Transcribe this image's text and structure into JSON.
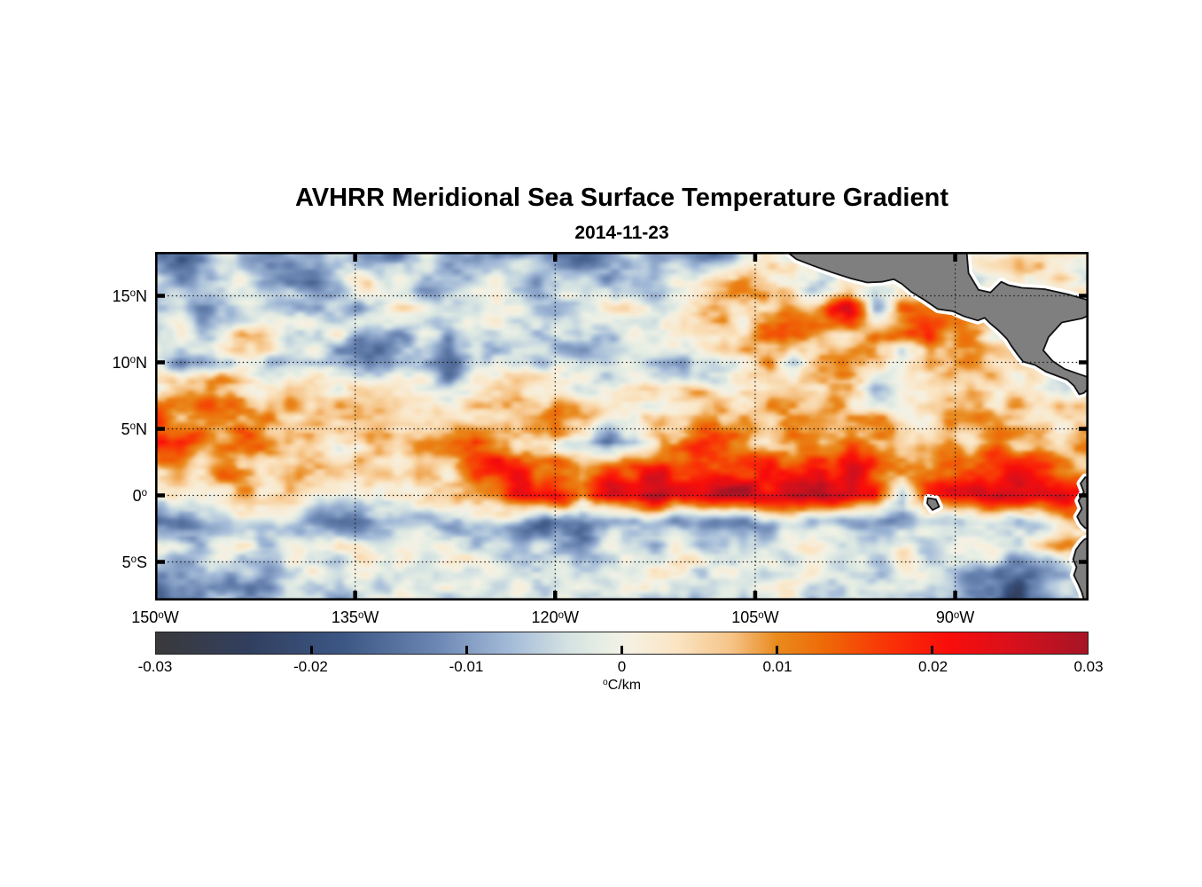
{
  "chart_data": {
    "type": "heatmap",
    "title": "AVHRR Meridional Sea Surface Temperature Gradient",
    "subtitle": "2014-11-23",
    "lon_range": [
      -150,
      -80
    ],
    "lat_range": [
      -7.9,
      18.3
    ],
    "x_ticks": [
      {
        "num": "150",
        "hemi": "W",
        "lon": -150
      },
      {
        "num": "135",
        "hemi": "W",
        "lon": -135
      },
      {
        "num": "120",
        "hemi": "W",
        "lon": -120
      },
      {
        "num": "105",
        "hemi": "W",
        "lon": -105
      },
      {
        "num": "90",
        "hemi": "W",
        "lon": -90
      }
    ],
    "y_ticks": [
      {
        "num": "15",
        "hemi": "N",
        "lat": 15
      },
      {
        "num": "10",
        "hemi": "N",
        "lat": 10
      },
      {
        "num": "5",
        "hemi": "N",
        "lat": 5
      },
      {
        "num": "0",
        "hemi": "",
        "lat": 0
      },
      {
        "num": "5",
        "hemi": "S",
        "lat": -5
      }
    ],
    "gridlines": {
      "lons": [
        -135,
        -120,
        -105,
        -90
      ],
      "lats": [
        15,
        10,
        5,
        0,
        -5
      ],
      "style": "dotted",
      "color": "#1a1a1a"
    },
    "colorbar": {
      "unit": "°C/km",
      "range": [
        -0.03,
        0.03
      ],
      "tick_labels": [
        "-0.03",
        "-0.02",
        "-0.01",
        "0",
        "0.01",
        "0.02",
        "0.03"
      ],
      "tick_values": [
        -0.03,
        -0.02,
        -0.01,
        0,
        0.01,
        0.02,
        0.03
      ]
    },
    "colormap_stops": [
      {
        "v": -0.03,
        "c": "#3a393b"
      },
      {
        "v": -0.024,
        "c": "#313f5e"
      },
      {
        "v": -0.018,
        "c": "#3c5684"
      },
      {
        "v": -0.012,
        "c": "#6b86b3"
      },
      {
        "v": -0.007,
        "c": "#a6bdd9"
      },
      {
        "v": -0.0035,
        "c": "#d4e2e2"
      },
      {
        "v": -0.001,
        "c": "#e9efe4"
      },
      {
        "v": 0.0,
        "c": "#f2f1e6"
      },
      {
        "v": 0.001,
        "c": "#f7efdd"
      },
      {
        "v": 0.0035,
        "c": "#fae5c4"
      },
      {
        "v": 0.007,
        "c": "#f6c488"
      },
      {
        "v": 0.01,
        "c": "#e98a1d"
      },
      {
        "v": 0.013,
        "c": "#ee6a07"
      },
      {
        "v": 0.017,
        "c": "#f93506"
      },
      {
        "v": 0.021,
        "c": "#f90d0a"
      },
      {
        "v": 0.025,
        "c": "#d9101b"
      },
      {
        "v": 0.03,
        "c": "#a61425"
      }
    ],
    "grid": {
      "lon_start": -150,
      "lon_step": 2,
      "lat_start": 18,
      "lat_step": -2,
      "unit_scale": 0.001,
      "values": [
        [
          -10,
          -14,
          -6,
          -2,
          -10,
          -12,
          -8,
          -2,
          -10,
          -12,
          -4,
          -8,
          -12,
          -10,
          -6,
          -10,
          -16,
          -12,
          -4,
          -8,
          -10,
          -12,
          -8,
          0,
          0,
          0,
          0,
          0,
          0,
          2,
          2,
          4,
          2,
          2,
          4,
          2
        ],
        [
          -4,
          -8,
          -3,
          2,
          -6,
          -10,
          -12,
          -4,
          2,
          -2,
          -8,
          -4,
          -2,
          -4,
          -8,
          -4,
          -2,
          -6,
          -10,
          -4,
          2,
          6,
          10,
          4,
          -4,
          -8,
          4,
          0,
          0,
          2,
          2,
          0,
          2,
          4,
          2,
          2
        ],
        [
          -2,
          -4,
          -8,
          -6,
          0,
          -2,
          -8,
          -10,
          -4,
          0,
          -2,
          -8,
          -6,
          -2,
          0,
          -4,
          -2,
          0,
          2,
          -2,
          0,
          4,
          2,
          8,
          6,
          14,
          24,
          -6,
          10,
          16,
          8,
          6,
          0,
          0,
          0,
          0
        ],
        [
          -2,
          0,
          -4,
          5,
          3,
          -4,
          0,
          -2,
          -8,
          -10,
          -4,
          -8,
          -4,
          0,
          -2,
          -6,
          -8,
          -4,
          0,
          2,
          -2,
          4,
          6,
          12,
          18,
          10,
          4,
          12,
          8,
          14,
          10,
          4,
          0,
          0,
          0,
          0
        ],
        [
          -6,
          -10,
          -4,
          -2,
          -4,
          -8,
          -6,
          -12,
          -16,
          -10,
          -6,
          -12,
          -8,
          -4,
          -2,
          -4,
          -6,
          -2,
          0,
          -4,
          -8,
          -2,
          2,
          6,
          -6,
          8,
          10,
          6,
          -4,
          8,
          12,
          6,
          4,
          0,
          0,
          0
        ],
        [
          2,
          8,
          12,
          10,
          4,
          8,
          4,
          2,
          0,
          2,
          -2,
          -6,
          2,
          6,
          4,
          2,
          0,
          -2,
          2,
          0,
          4,
          2,
          -2,
          4,
          6,
          2,
          6,
          -4,
          2,
          4,
          2,
          6,
          2,
          4,
          0,
          0
        ],
        [
          16,
          10,
          12,
          14,
          8,
          4,
          6,
          10,
          6,
          4,
          2,
          6,
          4,
          2,
          8,
          14,
          8,
          4,
          2,
          4,
          6,
          10,
          4,
          8,
          6,
          6,
          8,
          6,
          4,
          6,
          8,
          10,
          6,
          4,
          8,
          6
        ],
        [
          20,
          16,
          8,
          12,
          14,
          10,
          2,
          6,
          8,
          4,
          6,
          10,
          16,
          8,
          4,
          6,
          -6,
          -14,
          -8,
          8,
          12,
          16,
          10,
          6,
          10,
          10,
          14,
          8,
          6,
          4,
          6,
          8,
          10,
          6,
          4,
          8
        ],
        [
          6,
          4,
          8,
          10,
          6,
          8,
          4,
          2,
          6,
          2,
          4,
          8,
          14,
          20,
          16,
          10,
          6,
          14,
          18,
          22,
          16,
          12,
          16,
          20,
          14,
          18,
          22,
          16,
          12,
          10,
          14,
          18,
          22,
          16,
          12,
          10
        ],
        [
          4,
          2,
          4,
          6,
          2,
          4,
          2,
          0,
          2,
          4,
          2,
          6,
          10,
          14,
          24,
          28,
          8,
          26,
          26,
          28,
          24,
          26,
          28,
          24,
          26,
          28,
          24,
          20,
          -8,
          18,
          24,
          28,
          26,
          28,
          24,
          20
        ],
        [
          -14,
          -18,
          -8,
          -4,
          -8,
          -6,
          -10,
          -14,
          -12,
          -8,
          -6,
          -10,
          -8,
          -6,
          -12,
          -16,
          -18,
          -10,
          -6,
          -10,
          -12,
          -14,
          -10,
          -8,
          -6,
          -4,
          -8,
          -10,
          -12,
          -6,
          -4,
          -2,
          -6,
          -4,
          4,
          10
        ],
        [
          -4,
          -6,
          -2,
          0,
          -2,
          -4,
          -2,
          0,
          -2,
          -4,
          -2,
          0,
          -2,
          -4,
          -6,
          -8,
          -8,
          0,
          -2,
          -4,
          -2,
          -4,
          -6,
          -2,
          0,
          -2,
          -4,
          -2,
          0,
          -2,
          0,
          -4,
          -2,
          2,
          6,
          4
        ],
        [
          -12,
          -8,
          -4,
          -10,
          -6,
          -2,
          0,
          -2,
          0,
          -2,
          0,
          -2,
          0,
          -2,
          0,
          -2,
          0,
          -2,
          0,
          -2,
          0,
          -2,
          0,
          -2,
          0,
          -2,
          0,
          -2,
          -4,
          -2,
          -4,
          -8,
          -14,
          -18,
          -10,
          2
        ],
        [
          -18,
          -14,
          -6,
          -8,
          -12,
          -4,
          -6,
          -8,
          -4,
          -2,
          -4,
          -6,
          -4,
          -2,
          -4,
          -2,
          -4,
          -2,
          0,
          -2,
          -4,
          -2,
          -4,
          -2,
          -4,
          -2,
          -4,
          -6,
          -4,
          -8,
          -12,
          -16,
          -20,
          -12,
          -6,
          -10
        ]
      ]
    },
    "texture": {
      "seed": 1123,
      "amp": 0.0075,
      "cell_lon": 1.7,
      "cell_lat": 1.05
    },
    "land": {
      "fill": "#7f7f7f",
      "outline": "#111111",
      "halo": "#ffffff",
      "polygons": {
        "central_america": [
          [
            -102.6,
            18.3
          ],
          [
            -101.9,
            17.75
          ],
          [
            -100.6,
            17.25
          ],
          [
            -99.2,
            16.75
          ],
          [
            -97.8,
            16.3
          ],
          [
            -96.6,
            16.0
          ],
          [
            -95.5,
            16.05
          ],
          [
            -94.6,
            16.25
          ],
          [
            -94.0,
            15.9
          ],
          [
            -93.3,
            15.3
          ],
          [
            -92.4,
            14.75
          ],
          [
            -91.3,
            14.0
          ],
          [
            -90.2,
            13.85
          ],
          [
            -89.3,
            13.45
          ],
          [
            -88.3,
            13.15
          ],
          [
            -87.8,
            13.35
          ],
          [
            -87.4,
            12.95
          ],
          [
            -86.8,
            12.45
          ],
          [
            -86.1,
            11.75
          ],
          [
            -85.8,
            11.25
          ],
          [
            -85.3,
            10.55
          ],
          [
            -84.9,
            10.05
          ],
          [
            -84.0,
            9.8
          ],
          [
            -83.2,
            9.3
          ],
          [
            -82.4,
            9.0
          ],
          [
            -81.6,
            8.7
          ],
          [
            -81.1,
            8.25
          ],
          [
            -80.7,
            7.6
          ],
          [
            -80.35,
            7.7
          ],
          [
            -80.1,
            7.95
          ],
          [
            -79.8,
            8.2
          ],
          [
            -79.8,
            8.8
          ],
          [
            -80.8,
            9.15
          ],
          [
            -81.8,
            9.5
          ],
          [
            -82.7,
            10.1
          ],
          [
            -83.4,
            10.9
          ],
          [
            -83.0,
            11.9
          ],
          [
            -82.0,
            13.0
          ],
          [
            -80.5,
            13.3
          ],
          [
            -79.8,
            13.6
          ],
          [
            -79.8,
            14.6
          ],
          [
            -81.5,
            15.1
          ],
          [
            -83.3,
            15.5
          ],
          [
            -85.0,
            15.6
          ],
          [
            -86.0,
            15.8
          ],
          [
            -86.55,
            16.05
          ],
          [
            -87.35,
            15.25
          ],
          [
            -88.25,
            15.45
          ],
          [
            -89.0,
            16.7
          ],
          [
            -89.15,
            18.4
          ],
          [
            -102.6,
            18.4
          ]
        ],
        "south_america_north": [
          [
            -79.8,
            1.3
          ],
          [
            -80.25,
            1.35
          ],
          [
            -80.6,
            0.9
          ],
          [
            -80.35,
            0.25
          ],
          [
            -80.75,
            -0.4
          ],
          [
            -80.5,
            -1.0
          ],
          [
            -80.85,
            -1.6
          ],
          [
            -80.6,
            -2.1
          ],
          [
            -80.25,
            -2.45
          ],
          [
            -79.8,
            -2.55
          ]
        ],
        "south_america_south": [
          [
            -79.8,
            -3.15
          ],
          [
            -80.3,
            -3.3
          ],
          [
            -80.6,
            -3.6
          ],
          [
            -80.95,
            -4.1
          ],
          [
            -81.15,
            -4.8
          ],
          [
            -80.9,
            -5.4
          ],
          [
            -81.1,
            -6.0
          ],
          [
            -80.75,
            -6.7
          ],
          [
            -80.5,
            -7.3
          ],
          [
            -80.3,
            -8.0
          ],
          [
            -79.8,
            -8.0
          ]
        ],
        "galapagos": [
          [
            -92.05,
            -0.2
          ],
          [
            -91.45,
            -0.3
          ],
          [
            -91.2,
            -0.85
          ],
          [
            -91.7,
            -1.1
          ],
          [
            -92.1,
            -0.6
          ]
        ]
      },
      "sea_mask_polygons": {
        "caribbean_coastal_mask": [
          [
            -83.2,
            11.0
          ],
          [
            -82.8,
            12.0
          ],
          [
            -81.8,
            12.9
          ],
          [
            -79.8,
            13.4
          ],
          [
            -79.8,
            9.0
          ],
          [
            -80.9,
            9.3
          ],
          [
            -82.0,
            9.8
          ],
          [
            -82.9,
            10.4
          ]
        ]
      }
    }
  }
}
